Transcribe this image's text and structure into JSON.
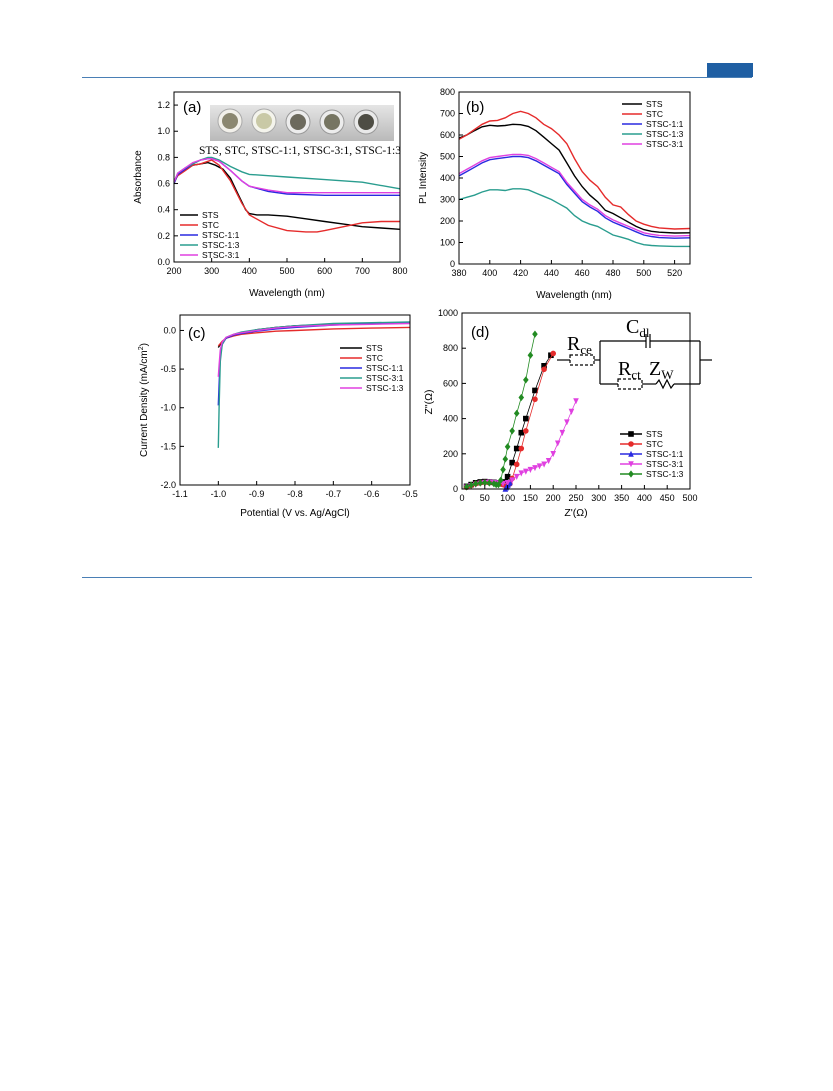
{
  "colors": {
    "rule": "#4a7fb5",
    "tab": "#1f5fa3"
  },
  "chart_data": [
    {
      "panel": "(a)",
      "type": "line",
      "xlabel": "Wavelength (nm)",
      "ylabel": "Absorbance",
      "xlim": [
        200,
        800
      ],
      "ylim": [
        0.0,
        1.3
      ],
      "xticks": [
        200,
        300,
        400,
        500,
        600,
        700,
        800
      ],
      "yticks": [
        0.0,
        0.2,
        0.4,
        0.6,
        0.8,
        1.0,
        1.2
      ],
      "legend_position": "bottom-left",
      "inset_caption": "STS, STC, STSC-1:1, STSC-3:1, STSC-1:3",
      "series": [
        {
          "name": "STS",
          "color": "#000000",
          "x": [
            200,
            210,
            230,
            250,
            270,
            290,
            310,
            330,
            350,
            370,
            390,
            400,
            420,
            450,
            500,
            550,
            600,
            650,
            700,
            750,
            800
          ],
          "y": [
            0.6,
            0.67,
            0.71,
            0.74,
            0.75,
            0.76,
            0.74,
            0.71,
            0.64,
            0.52,
            0.4,
            0.37,
            0.36,
            0.36,
            0.35,
            0.33,
            0.31,
            0.29,
            0.27,
            0.26,
            0.25
          ]
        },
        {
          "name": "STC",
          "color": "#e52b2b",
          "x": [
            200,
            210,
            230,
            250,
            270,
            290,
            300,
            320,
            350,
            380,
            400,
            450,
            500,
            550,
            580,
            600,
            650,
            700,
            750,
            800
          ],
          "y": [
            0.61,
            0.66,
            0.7,
            0.74,
            0.75,
            0.77,
            0.78,
            0.74,
            0.62,
            0.45,
            0.36,
            0.28,
            0.24,
            0.23,
            0.23,
            0.24,
            0.27,
            0.3,
            0.31,
            0.31
          ]
        },
        {
          "name": "STSC-1:1",
          "color": "#2a2ae0",
          "x": [
            200,
            210,
            230,
            250,
            270,
            290,
            300,
            320,
            350,
            380,
            400,
            450,
            500,
            600,
            700,
            800
          ],
          "y": [
            0.6,
            0.67,
            0.71,
            0.75,
            0.78,
            0.79,
            0.79,
            0.77,
            0.7,
            0.62,
            0.58,
            0.54,
            0.52,
            0.51,
            0.51,
            0.51
          ]
        },
        {
          "name": "STSC-1:3",
          "color": "#2a9d8f",
          "x": [
            200,
            210,
            230,
            250,
            270,
            290,
            300,
            320,
            350,
            380,
            400,
            450,
            500,
            600,
            700,
            800
          ],
          "y": [
            0.61,
            0.68,
            0.72,
            0.75,
            0.78,
            0.8,
            0.8,
            0.78,
            0.73,
            0.69,
            0.67,
            0.66,
            0.65,
            0.63,
            0.61,
            0.56
          ]
        },
        {
          "name": "STSC-3:1",
          "color": "#e040e0",
          "x": [
            200,
            210,
            230,
            250,
            270,
            290,
            300,
            320,
            350,
            380,
            400,
            450,
            500,
            600,
            700,
            800
          ],
          "y": [
            0.61,
            0.68,
            0.72,
            0.76,
            0.78,
            0.79,
            0.79,
            0.77,
            0.7,
            0.62,
            0.58,
            0.55,
            0.53,
            0.53,
            0.53,
            0.53
          ]
        }
      ]
    },
    {
      "panel": "(b)",
      "type": "line",
      "xlabel": "Wavelength (nm)",
      "ylabel": "PL Intensity",
      "xlim": [
        380,
        530
      ],
      "ylim": [
        0,
        800
      ],
      "xticks": [
        380,
        400,
        420,
        440,
        460,
        480,
        500,
        520
      ],
      "yticks": [
        0,
        100,
        200,
        300,
        400,
        500,
        600,
        700,
        800
      ],
      "legend_position": "top-right",
      "series": [
        {
          "name": "STS",
          "color": "#000000",
          "x": [
            380,
            385,
            390,
            395,
            400,
            405,
            410,
            415,
            420,
            425,
            430,
            435,
            440,
            445,
            450,
            455,
            460,
            465,
            470,
            475,
            480,
            485,
            490,
            495,
            500,
            505,
            510,
            520,
            530
          ],
          "y": [
            585,
            600,
            620,
            638,
            645,
            642,
            644,
            650,
            648,
            640,
            620,
            590,
            560,
            530,
            470,
            410,
            360,
            320,
            290,
            250,
            235,
            215,
            195,
            175,
            160,
            152,
            148,
            144,
            145
          ]
        },
        {
          "name": "STC",
          "color": "#e52b2b",
          "x": [
            380,
            385,
            390,
            395,
            400,
            405,
            410,
            415,
            420,
            425,
            430,
            435,
            440,
            445,
            450,
            455,
            460,
            465,
            470,
            475,
            480,
            485,
            490,
            495,
            500,
            505,
            510,
            520,
            530
          ],
          "y": [
            580,
            600,
            625,
            650,
            665,
            668,
            680,
            700,
            710,
            700,
            680,
            650,
            630,
            600,
            560,
            490,
            430,
            390,
            360,
            310,
            275,
            265,
            230,
            200,
            185,
            175,
            168,
            163,
            165
          ]
        },
        {
          "name": "STSC-1:1",
          "color": "#2a2ae0",
          "x": [
            380,
            385,
            390,
            395,
            400,
            405,
            410,
            415,
            420,
            425,
            430,
            435,
            440,
            445,
            450,
            455,
            460,
            465,
            470,
            475,
            480,
            485,
            490,
            495,
            500,
            505,
            510,
            520,
            530
          ],
          "y": [
            410,
            430,
            450,
            470,
            485,
            490,
            495,
            500,
            500,
            495,
            480,
            460,
            440,
            420,
            370,
            330,
            290,
            265,
            245,
            215,
            195,
            180,
            165,
            150,
            135,
            128,
            123,
            120,
            122
          ]
        },
        {
          "name": "STSC-1:3",
          "color": "#2a9d8f",
          "x": [
            380,
            385,
            390,
            395,
            400,
            405,
            410,
            415,
            420,
            425,
            430,
            435,
            440,
            445,
            450,
            455,
            460,
            465,
            470,
            475,
            480,
            485,
            490,
            495,
            500,
            505,
            510,
            520,
            530
          ],
          "y": [
            300,
            310,
            320,
            335,
            345,
            345,
            342,
            350,
            350,
            345,
            330,
            315,
            300,
            280,
            260,
            225,
            200,
            185,
            175,
            155,
            135,
            125,
            115,
            100,
            90,
            86,
            84,
            82,
            82
          ]
        },
        {
          "name": "STSC-3:1",
          "color": "#e040e0",
          "x": [
            380,
            385,
            390,
            395,
            400,
            405,
            410,
            415,
            420,
            425,
            430,
            435,
            440,
            445,
            450,
            455,
            460,
            465,
            470,
            475,
            480,
            485,
            490,
            495,
            500,
            505,
            510,
            520,
            530
          ],
          "y": [
            420,
            440,
            460,
            480,
            495,
            500,
            505,
            510,
            510,
            505,
            490,
            470,
            450,
            430,
            380,
            340,
            300,
            275,
            255,
            225,
            205,
            190,
            175,
            160,
            145,
            138,
            133,
            130,
            132
          ]
        }
      ]
    },
    {
      "panel": "(c)",
      "type": "line",
      "xlabel": "Potential (V vs. Ag/AgCl)",
      "ylabel": "Current Density (mA/cm²)",
      "ylabel_main": "Current Density (mA/cm",
      "ylabel_sup": "2",
      "ylabel_end": ")",
      "xlim": [
        -1.1,
        -0.5
      ],
      "ylim": [
        -2.0,
        0.2
      ],
      "xticks": [
        -1.1,
        -1.0,
        -0.9,
        -0.8,
        -0.7,
        -0.6,
        -0.5
      ],
      "yticks": [
        0.0,
        -0.5,
        -1.0,
        -1.5,
        -2.0
      ],
      "legend_position": "right",
      "series": [
        {
          "name": "STS",
          "color": "#000000",
          "x": [
            -1.0,
            -1.0,
            -0.995,
            -0.99,
            -0.98,
            -0.96,
            -0.94,
            -0.9,
            -0.85,
            -0.8,
            -0.7,
            -0.6,
            -0.5
          ],
          "y": [
            -0.22,
            -0.22,
            -0.18,
            -0.15,
            -0.1,
            -0.06,
            -0.04,
            0.01,
            0.04,
            0.06,
            0.08,
            0.09,
            0.1
          ]
        },
        {
          "name": "STC",
          "color": "#e52b2b",
          "x": [
            -1.0,
            -1.0,
            -0.995,
            -0.99,
            -0.98,
            -0.96,
            -0.94,
            -0.9,
            -0.85,
            -0.8,
            -0.7,
            -0.6,
            -0.5
          ],
          "y": [
            -0.2,
            -0.2,
            -0.17,
            -0.14,
            -0.1,
            -0.07,
            -0.05,
            -0.03,
            -0.01,
            0.0,
            0.02,
            0.03,
            0.04
          ]
        },
        {
          "name": "STSC-1:1",
          "color": "#2a2ae0",
          "x": [
            -1.0,
            -0.998,
            -0.995,
            -0.99,
            -0.98,
            -0.96,
            -0.94,
            -0.9,
            -0.85,
            -0.8,
            -0.7,
            -0.6,
            -0.5
          ],
          "y": [
            -0.97,
            -0.7,
            -0.32,
            -0.18,
            -0.1,
            -0.06,
            -0.04,
            -0.01,
            0.02,
            0.04,
            0.07,
            0.09,
            0.1
          ]
        },
        {
          "name": "STSC-3:1",
          "color": "#2a9d8f",
          "x": [
            -1.0,
            -0.998,
            -0.995,
            -0.99,
            -0.98,
            -0.96,
            -0.94,
            -0.9,
            -0.85,
            -0.8,
            -0.7,
            -0.6,
            -0.5
          ],
          "y": [
            -1.52,
            -1.0,
            -0.4,
            -0.18,
            -0.09,
            -0.05,
            -0.02,
            0.01,
            0.04,
            0.06,
            0.09,
            0.1,
            0.11
          ]
        },
        {
          "name": "STSC-1:3",
          "color": "#e040e0",
          "x": [
            -1.0,
            -0.998,
            -0.995,
            -0.99,
            -0.98,
            -0.96,
            -0.94,
            -0.9,
            -0.85,
            -0.8,
            -0.7,
            -0.6,
            -0.5
          ],
          "y": [
            -0.6,
            -0.45,
            -0.25,
            -0.15,
            -0.09,
            -0.05,
            -0.03,
            0.0,
            0.03,
            0.05,
            0.07,
            0.08,
            0.09
          ]
        }
      ]
    },
    {
      "panel": "(d)",
      "type": "scatter",
      "xlabel": "Z'(Ω)",
      "ylabel": "Z\"(Ω)",
      "xlim": [
        0,
        500
      ],
      "ylim": [
        0,
        1000
      ],
      "xticks": [
        0,
        50,
        100,
        150,
        200,
        250,
        300,
        350,
        400,
        450,
        500
      ],
      "yticks": [
        0,
        200,
        400,
        600,
        800,
        1000
      ],
      "legend_position": "bottom-right",
      "circuit": {
        "r_ce": "R",
        "r_ce_sub": "ce",
        "c_dl": "C",
        "c_dl_sub": "dl",
        "r_ct": "R",
        "r_ct_sub": "ct",
        "z_w": "Z",
        "z_w_sub": "W"
      },
      "series": [
        {
          "name": "STS",
          "color": "#000000",
          "marker": "square",
          "x": [
            10,
            20,
            30,
            40,
            50,
            60,
            70,
            80,
            85,
            90,
            95,
            100,
            110,
            120,
            130,
            140,
            160,
            180,
            195
          ],
          "y": [
            15,
            25,
            35,
            40,
            42,
            40,
            38,
            35,
            30,
            30,
            40,
            70,
            150,
            230,
            320,
            400,
            560,
            700,
            760
          ]
        },
        {
          "name": "STC",
          "color": "#e52b2b",
          "marker": "circle",
          "x": [
            10,
            20,
            30,
            40,
            50,
            60,
            70,
            80,
            90,
            95,
            100,
            105,
            110,
            120,
            130,
            140,
            160,
            180,
            200
          ],
          "y": [
            10,
            20,
            30,
            35,
            38,
            36,
            34,
            30,
            25,
            20,
            20,
            30,
            60,
            140,
            230,
            330,
            510,
            680,
            770
          ]
        },
        {
          "name": "STSC-1:1",
          "color": "#2a2ae0",
          "marker": "triangle-up",
          "x": [
            95,
            97,
            99,
            101,
            103,
            105
          ],
          "y": [
            0,
            8,
            16,
            24,
            32,
            38
          ]
        },
        {
          "name": "STSC-3:1",
          "color": "#e040e0",
          "marker": "triangle-down",
          "x": [
            10,
            20,
            30,
            40,
            50,
            60,
            70,
            80,
            90,
            100,
            110,
            120,
            130,
            140,
            150,
            160,
            170,
            180,
            190,
            200,
            210,
            220,
            230,
            240,
            250
          ],
          "y": [
            10,
            18,
            25,
            32,
            36,
            38,
            36,
            34,
            30,
            35,
            50,
            70,
            90,
            100,
            110,
            120,
            130,
            140,
            160,
            200,
            260,
            320,
            380,
            440,
            500
          ]
        },
        {
          "name": "STSC-1:3",
          "color": "#228b22",
          "marker": "diamond",
          "x": [
            10,
            20,
            30,
            40,
            50,
            60,
            70,
            75,
            80,
            85,
            90,
            95,
            100,
            110,
            120,
            130,
            140,
            150,
            160
          ],
          "y": [
            12,
            22,
            30,
            34,
            36,
            34,
            30,
            25,
            25,
            50,
            110,
            170,
            240,
            330,
            430,
            520,
            620,
            760,
            880
          ]
        }
      ]
    }
  ]
}
